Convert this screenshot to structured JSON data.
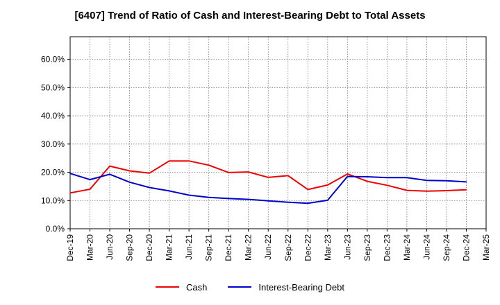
{
  "chart_data": {
    "type": "line",
    "title": "[6407]  Trend of Ratio of Cash and Interest-Bearing Debt to Total Assets",
    "xlabel": "",
    "ylabel": "",
    "x": [
      "Dec-19",
      "Mar-20",
      "Jun-20",
      "Sep-20",
      "Dec-20",
      "Mar-21",
      "Jun-21",
      "Sep-21",
      "Dec-21",
      "Mar-22",
      "Jun-22",
      "Sep-22",
      "Dec-22",
      "Mar-23",
      "Jun-23",
      "Sep-23",
      "Dec-23",
      "Mar-24",
      "Jun-24",
      "Sep-24",
      "Dec-24"
    ],
    "x_tick_labels": [
      "Dec-19",
      "Mar-20",
      "Jun-20",
      "Sep-20",
      "Dec-20",
      "Mar-21",
      "Jun-21",
      "Sep-21",
      "Dec-21",
      "Mar-22",
      "Jun-22",
      "Sep-22",
      "Dec-22",
      "Mar-23",
      "Jun-23",
      "Sep-23",
      "Dec-23",
      "Mar-24",
      "Jun-24",
      "Sep-24",
      "Dec-24",
      "Mar-25"
    ],
    "ylim": [
      0,
      68
    ],
    "y_ticks": [
      0,
      10,
      20,
      30,
      40,
      50,
      60
    ],
    "y_tick_labels": [
      "0.0%",
      "10.0%",
      "20.0%",
      "30.0%",
      "40.0%",
      "50.0%",
      "60.0%"
    ],
    "grid": true,
    "legend_position": "bottom",
    "series": [
      {
        "name": "Cash",
        "color": "#ee0000",
        "values": [
          12.7,
          14.0,
          22.2,
          20.5,
          19.7,
          24.0,
          24.0,
          22.5,
          19.9,
          20.1,
          18.2,
          18.8,
          13.9,
          15.5,
          19.4,
          16.8,
          15.4,
          13.6,
          13.3,
          13.5,
          13.8
        ]
      },
      {
        "name": "Interest-Bearing Debt",
        "color": "#0000cc",
        "values": [
          19.6,
          17.4,
          19.3,
          16.5,
          14.6,
          13.4,
          11.9,
          11.1,
          10.7,
          10.4,
          9.9,
          9.4,
          9.0,
          10.1,
          18.5,
          18.4,
          18.1,
          18.1,
          17.1,
          17.0,
          16.6
        ]
      }
    ]
  }
}
